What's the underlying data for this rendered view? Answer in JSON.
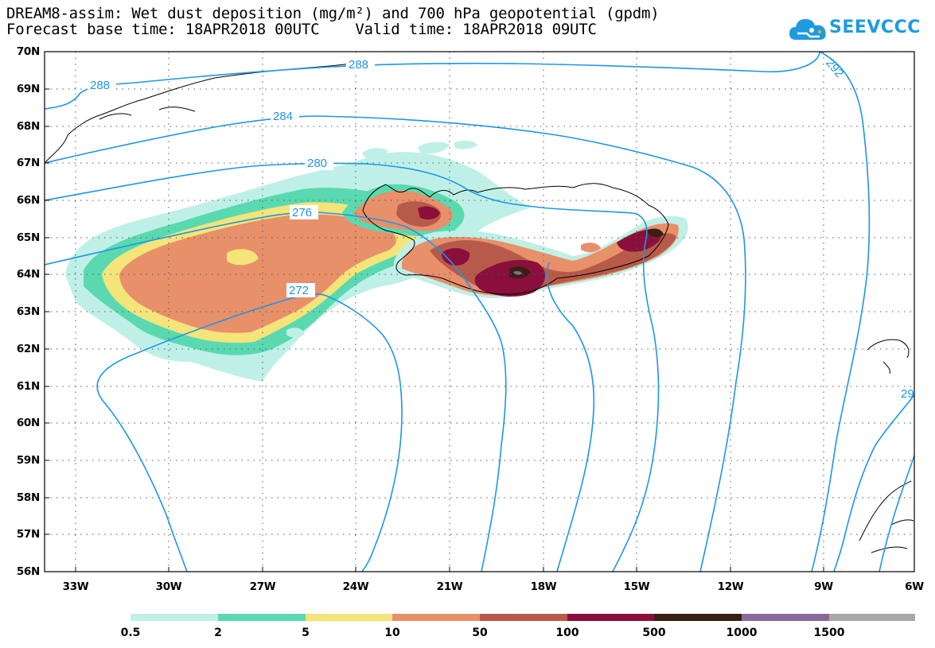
{
  "title": {
    "line1": "DREAM8-assim: Wet dust deposition (mg/m²) and 700 hPa geopotential (gpdm)",
    "line2": "Forecast base time: 18APR2018 00UTC    Valid time: 18APR2018 09UTC"
  },
  "logo": {
    "text": "SEEVCCC",
    "icon": "cloud-icon",
    "color": "#1e9be0"
  },
  "map": {
    "lat_range": [
      56,
      70
    ],
    "lon_range": [
      -34.5,
      -6
    ],
    "lat_labels": [
      "70N",
      "69N",
      "68N",
      "67N",
      "66N",
      "65N",
      "64N",
      "63N",
      "62N",
      "61N",
      "60N",
      "59N",
      "58N",
      "57N",
      "56N"
    ],
    "lon_labels": [
      "33W",
      "30W",
      "27W",
      "24W",
      "21W",
      "18W",
      "15W",
      "12W",
      "9W",
      "6W"
    ],
    "contour_color": "#1e96e6",
    "contour_labels": [
      "288",
      "288",
      "292",
      "284",
      "280",
      "276",
      "272",
      "29"
    ]
  },
  "legend": {
    "colors": [
      "#bff0e8",
      "#5ad9b0",
      "#f4e47a",
      "#e8906a",
      "#b85a4a",
      "#8b0f3c",
      "#3a2014",
      "#8a6a9a",
      "#a8a8a8"
    ],
    "labels": [
      "0.5",
      "2",
      "5",
      "10",
      "50",
      "100",
      "500",
      "1000",
      "1500"
    ]
  }
}
